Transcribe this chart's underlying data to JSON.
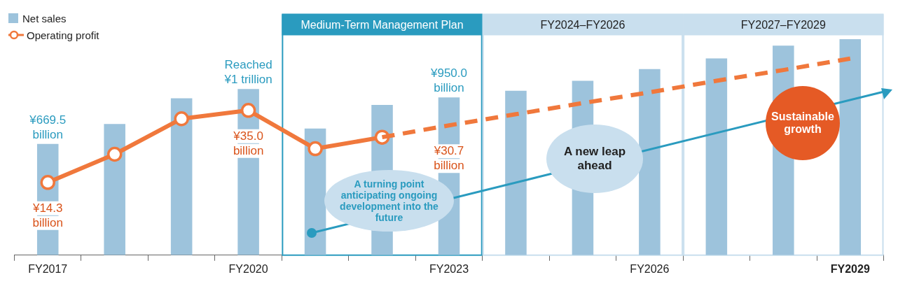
{
  "chart_data": {
    "type": "bar",
    "categories": [
      "FY2017",
      null,
      null,
      "FY2020",
      null,
      null,
      "FY2023",
      null,
      null,
      "FY2026",
      null,
      null,
      "FY2029"
    ],
    "series": [
      {
        "name": "Net sales",
        "color": "#9dc3dc",
        "values": [
          669.5,
          790,
          945,
          1000,
          763,
          905,
          950,
          990,
          1050,
          1120,
          1185,
          1262,
          1300
        ],
        "value_labels": [
          "¥669.5 billion",
          null,
          null,
          "Reached ¥1 trillion",
          null,
          null,
          "¥950.0 billion",
          null,
          null,
          null,
          null,
          null,
          null
        ]
      },
      {
        "name": "Operating profit",
        "type": "line",
        "axis": "y2",
        "color": "#f0783c",
        "marker": "circle",
        "line_style": "solid",
        "values": [
          14.3,
          22.4,
          32.6,
          35.0,
          24.0,
          27.3,
          null,
          null,
          null,
          null,
          null,
          null,
          null
        ],
        "value_labels": [
          "¥14.3 billion",
          null,
          null,
          "¥35.0 billion",
          null,
          null,
          null,
          null,
          null,
          null,
          null,
          null,
          null
        ]
      },
      {
        "type": "line",
        "axis": "y2",
        "color": "#f0783c",
        "marker": "none",
        "line_style": "dashed",
        "values": [
          null,
          null,
          null,
          null,
          null,
          27.3,
          30.7,
          33.9,
          37.1,
          40.2,
          43.5,
          46.6,
          49.9
        ],
        "value_labels": [
          null,
          null,
          null,
          null,
          null,
          null,
          "¥30.7 billion",
          null,
          null,
          null,
          null,
          null,
          null
        ]
      }
    ],
    "ylim": [
      0,
      1450
    ],
    "y2lim": [
      -6.6,
      62.6
    ],
    "tick_labels": "x",
    "legend": "top left",
    "grid": false,
    "bands": [
      {
        "axis": "x",
        "from": "FY2020",
        "to": "FY2023",
        "label": "Medium-Term Management Plan",
        "color": "#2a9bbf"
      },
      {
        "axis": "x",
        "from": "FY2023",
        "to": "FY2026",
        "label": "FY2024–FY2026",
        "color": "#c9dfee"
      },
      {
        "axis": "x",
        "from": "FY2026",
        "to": "FY2029",
        "label": "FY2027–FY2029",
        "color": "#c9dfee"
      }
    ],
    "annotations": [
      "A turning point anticipating ongoing development into the future",
      "A new leap ahead",
      "Sustainable growth"
    ]
  }
}
